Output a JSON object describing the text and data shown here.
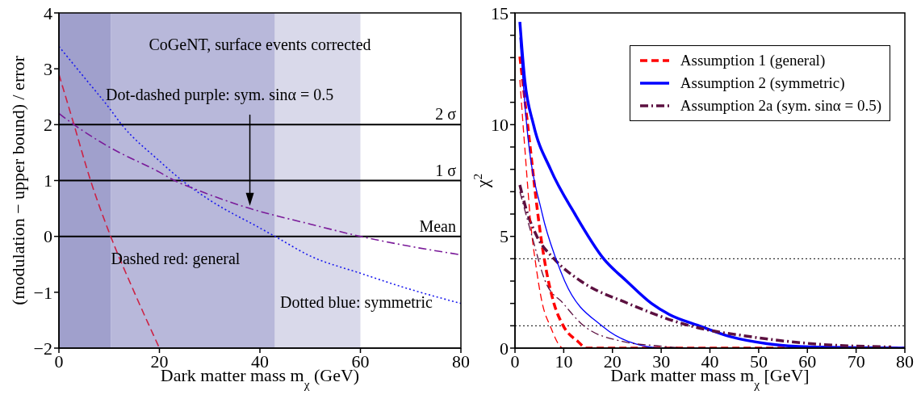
{
  "chart_data": [
    {
      "type": "line",
      "xlabel": "Dark matter mass m$_{χ}$ (GeV)",
      "ylabel": "(modulation − upper bound) / error",
      "xlim": [
        0,
        80
      ],
      "ylim": [
        -2,
        4
      ],
      "xticks": [
        0,
        20,
        40,
        60,
        80
      ],
      "yticks": [
        {
          "value": -2,
          "label": "−2"
        },
        {
          "value": -1,
          "label": "−1"
        },
        0,
        1,
        2,
        3,
        4
      ],
      "grid": false,
      "legend": false,
      "marker": "none",
      "bands": [
        {
          "axis": "x",
          "from": 0,
          "to": 10.3,
          "color": "#a0a0cc"
        },
        {
          "axis": "x",
          "from": 10.3,
          "to": 43,
          "color": "#b8b8da"
        },
        {
          "axis": "x",
          "from": 43,
          "to": 60,
          "color": "#d9d9ea"
        }
      ],
      "ref_lines": [
        {
          "axis": "y",
          "value": 2,
          "label": "2 σ",
          "color": "#000000"
        },
        {
          "axis": "y",
          "value": 1,
          "label": "1 σ",
          "color": "#000000"
        },
        {
          "axis": "y",
          "value": 0,
          "label": "Mean",
          "color": "#000000"
        }
      ],
      "annotations": [
        "CoGeNT, surface events corrected",
        "Dot-dashed purple: sym. sinα = 0.5",
        "Dashed red: general",
        "Dotted blue: symmetric"
      ],
      "series": [
        {
          "color": "#cc2244",
          "line_style": "dashed",
          "x": [
            0,
            3,
            6.3,
            10.3,
            15,
            20
          ],
          "values": [
            2.9,
            2.0,
            1.0,
            0,
            -1,
            -2
          ]
        },
        {
          "color": "#1a1aee",
          "line_style": "dotted",
          "x": [
            0,
            5,
            10,
            12.5,
            20,
            24.5,
            30,
            40,
            43,
            50,
            60,
            70,
            80
          ],
          "values": [
            3.4,
            2.85,
            2.3,
            2.0,
            1.35,
            1.0,
            0.65,
            0.15,
            0,
            -0.35,
            -0.66,
            -0.95,
            -1.2
          ]
        },
        {
          "color": "#7a1a99",
          "line_style": "dashdot",
          "x": [
            0,
            3,
            10,
            20,
            23,
            27,
            38,
            50,
            60,
            70,
            80
          ],
          "values": [
            2.2,
            2.0,
            1.6,
            1.15,
            1.0,
            0.85,
            0.5,
            0.22,
            0,
            -0.18,
            -0.33
          ]
        }
      ]
    },
    {
      "type": "line",
      "xlabel": "Dark matter mass m$_{χ}$ [GeV]",
      "ylabel": "χ$^{2}$",
      "xlim": [
        0,
        80
      ],
      "ylim": [
        0,
        15
      ],
      "xticks": [
        0,
        10,
        20,
        30,
        40,
        50,
        60,
        70,
        80
      ],
      "yticks": [
        0,
        {
          "value": 1,
          "label": null
        },
        {
          "value": 2,
          "label": null
        },
        {
          "value": 3,
          "label": null
        },
        {
          "value": 4,
          "label": null
        },
        5,
        {
          "value": 6,
          "label": null
        },
        {
          "value": 7,
          "label": null
        },
        {
          "value": 8,
          "label": null
        },
        {
          "value": 9,
          "label": null
        },
        10,
        {
          "value": 11,
          "label": null
        },
        {
          "value": 12,
          "label": null
        },
        {
          "value": 13,
          "label": null
        },
        {
          "value": 14,
          "label": null
        },
        15
      ],
      "grid": false,
      "legend": "top right",
      "marker": "none",
      "ref_lines": [
        {
          "axis": "y",
          "value": 4,
          "color": "#000000",
          "line_style": "dotted"
        },
        {
          "axis": "y",
          "value": 1,
          "color": "#000000",
          "line_style": "dotted"
        }
      ],
      "series": [
        {
          "name": "Assumption 1 (general)",
          "color": "#ff0000",
          "line_style": "dashed",
          "x": [
            1,
            2.6,
            5.3,
            6,
            8,
            9.9,
            12.9,
            14.7,
            30,
            50,
            80
          ],
          "values": [
            13.05,
            10,
            5,
            4,
            2,
            1,
            0.3,
            0,
            0,
            0,
            0
          ]
        },
        {
          "name": "Assumption 2 (symmetric)",
          "color": "#0000ff",
          "line_style": "solid",
          "x": [
            1,
            2,
            3.8,
            7.3,
            12.3,
            18.2,
            22.9,
            28,
            31.7,
            37.8,
            44.4,
            51.7,
            60.8,
            80
          ],
          "values": [
            14.6,
            12,
            10,
            8,
            6,
            4,
            3,
            2,
            1.5,
            1,
            0.5,
            0.2,
            0.05,
            0
          ]
        },
        {
          "name": "Assumption 2a (sym. sinα = 0.5)",
          "color": "#5c1040",
          "line_style": "dashdot",
          "x": [
            1,
            2.6,
            4.5,
            8,
            13.5,
            23.2,
            35.9,
            48.7,
            60.8,
            77.2
          ],
          "values": [
            7.3,
            6,
            5,
            4,
            3,
            2,
            1,
            0.5,
            0.2,
            0.05
          ]
        },
        {
          "color": "#ff0000",
          "line_style": "dashed",
          "x": [
            1,
            2,
            3.5,
            4.1,
            5.6,
            7.2,
            9.9,
            20
          ],
          "values": [
            12,
            9,
            5,
            4,
            2,
            1,
            0,
            0
          ]
        },
        {
          "color": "#0000ff",
          "line_style": "solid",
          "x": [
            1,
            2.4,
            5.6,
            8.4,
            10.2,
            17.8,
            23.2,
            30.5,
            40
          ],
          "values": [
            13.9,
            10,
            6,
            4,
            3,
            1,
            0.3,
            0,
            0
          ]
        },
        {
          "color": "#5c1040",
          "line_style": "dashdot",
          "x": [
            1,
            3.5,
            6.2,
            9.9,
            14.1,
            22,
            29.3,
            35
          ],
          "values": [
            7,
            5,
            3,
            2,
            1,
            0.3,
            0.1,
            0
          ]
        }
      ]
    }
  ]
}
